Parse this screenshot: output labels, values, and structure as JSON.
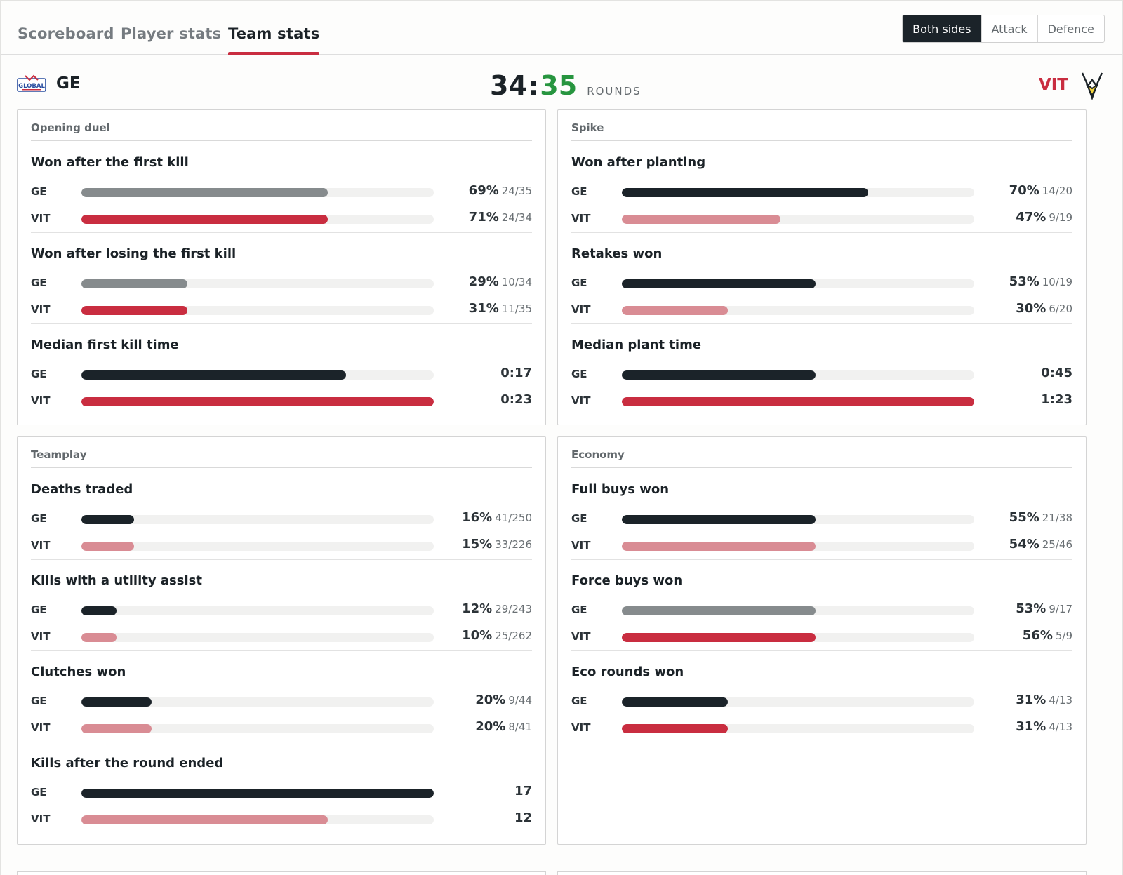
{
  "tabs": [
    {
      "label": "Scoreboard",
      "active": false
    },
    {
      "label": "Player stats",
      "active": false
    },
    {
      "label": "Team stats",
      "active": true
    }
  ],
  "side_filter": [
    {
      "label": "Both sides",
      "active": true
    },
    {
      "label": "Attack",
      "active": false
    },
    {
      "label": "Defence",
      "active": false
    }
  ],
  "match": {
    "team_left": "GE",
    "team_right": "VIT",
    "score_left": "34",
    "score_right": "35",
    "score_separator": ":",
    "score_label": "ROUNDS",
    "left_logo_text": "GLOBAL"
  },
  "colors": {
    "dark": "#1b2329",
    "grey": "#868b8d",
    "red": "#c92d40",
    "pink": "#d98c94",
    "green": "#27953f"
  },
  "cards": [
    {
      "title": "Opening duel",
      "stats": [
        {
          "title": "Won after the first kill",
          "rows": [
            {
              "team": "GE",
              "pct": "69%",
              "count": "24/35",
              "fill": 0.7,
              "color": "grey"
            },
            {
              "team": "VIT",
              "pct": "71%",
              "count": "24/34",
              "fill": 0.7,
              "color": "red"
            }
          ]
        },
        {
          "title": "Won after losing the first kill",
          "rows": [
            {
              "team": "GE",
              "pct": "29%",
              "count": "10/34",
              "fill": 0.3,
              "color": "grey"
            },
            {
              "team": "VIT",
              "pct": "31%",
              "count": "11/35",
              "fill": 0.3,
              "color": "red"
            }
          ]
        },
        {
          "title": "Median first kill time",
          "rows": [
            {
              "team": "GE",
              "pct": "0:17",
              "count": "",
              "fill": 0.75,
              "color": "dark"
            },
            {
              "team": "VIT",
              "pct": "0:23",
              "count": "",
              "fill": 1.0,
              "color": "red"
            }
          ]
        }
      ]
    },
    {
      "title": "Spike",
      "stats": [
        {
          "title": "Won after planting",
          "rows": [
            {
              "team": "GE",
              "pct": "70%",
              "count": "14/20",
              "fill": 0.7,
              "color": "dark"
            },
            {
              "team": "VIT",
              "pct": "47%",
              "count": "9/19",
              "fill": 0.45,
              "color": "pink"
            }
          ]
        },
        {
          "title": "Retakes won",
          "rows": [
            {
              "team": "GE",
              "pct": "53%",
              "count": "10/19",
              "fill": 0.55,
              "color": "dark"
            },
            {
              "team": "VIT",
              "pct": "30%",
              "count": "6/20",
              "fill": 0.3,
              "color": "pink"
            }
          ]
        },
        {
          "title": "Median plant time",
          "rows": [
            {
              "team": "GE",
              "pct": "0:45",
              "count": "",
              "fill": 0.55,
              "color": "dark"
            },
            {
              "team": "VIT",
              "pct": "1:23",
              "count": "",
              "fill": 1.0,
              "color": "red"
            }
          ]
        }
      ]
    },
    {
      "title": "Teamplay",
      "stats": [
        {
          "title": "Deaths traded",
          "rows": [
            {
              "team": "GE",
              "pct": "16%",
              "count": "41/250",
              "fill": 0.15,
              "color": "dark"
            },
            {
              "team": "VIT",
              "pct": "15%",
              "count": "33/226",
              "fill": 0.15,
              "color": "pink"
            }
          ]
        },
        {
          "title": "Kills with a utility assist",
          "rows": [
            {
              "team": "GE",
              "pct": "12%",
              "count": "29/243",
              "fill": 0.1,
              "color": "dark"
            },
            {
              "team": "VIT",
              "pct": "10%",
              "count": "25/262",
              "fill": 0.1,
              "color": "pink"
            }
          ]
        },
        {
          "title": "Clutches won",
          "rows": [
            {
              "team": "GE",
              "pct": "20%",
              "count": "9/44",
              "fill": 0.2,
              "color": "dark"
            },
            {
              "team": "VIT",
              "pct": "20%",
              "count": "8/41",
              "fill": 0.2,
              "color": "pink"
            }
          ]
        },
        {
          "title": "Kills after the round ended",
          "rows": [
            {
              "team": "GE",
              "pct": "17",
              "count": "",
              "fill": 1.0,
              "color": "dark"
            },
            {
              "team": "VIT",
              "pct": "12",
              "count": "",
              "fill": 0.7,
              "color": "pink"
            }
          ]
        }
      ]
    },
    {
      "title": "Economy",
      "stats": [
        {
          "title": "Full buys won",
          "rows": [
            {
              "team": "GE",
              "pct": "55%",
              "count": "21/38",
              "fill": 0.55,
              "color": "dark"
            },
            {
              "team": "VIT",
              "pct": "54%",
              "count": "25/46",
              "fill": 0.55,
              "color": "pink"
            }
          ]
        },
        {
          "title": "Force buys won",
          "rows": [
            {
              "team": "GE",
              "pct": "53%",
              "count": "9/17",
              "fill": 0.55,
              "color": "grey"
            },
            {
              "team": "VIT",
              "pct": "56%",
              "count": "5/9",
              "fill": 0.55,
              "color": "red"
            }
          ]
        },
        {
          "title": "Eco rounds won",
          "rows": [
            {
              "team": "GE",
              "pct": "31%",
              "count": "4/13",
              "fill": 0.3,
              "color": "dark"
            },
            {
              "team": "VIT",
              "pct": "31%",
              "count": "4/13",
              "fill": 0.3,
              "color": "red"
            }
          ]
        }
      ]
    }
  ]
}
